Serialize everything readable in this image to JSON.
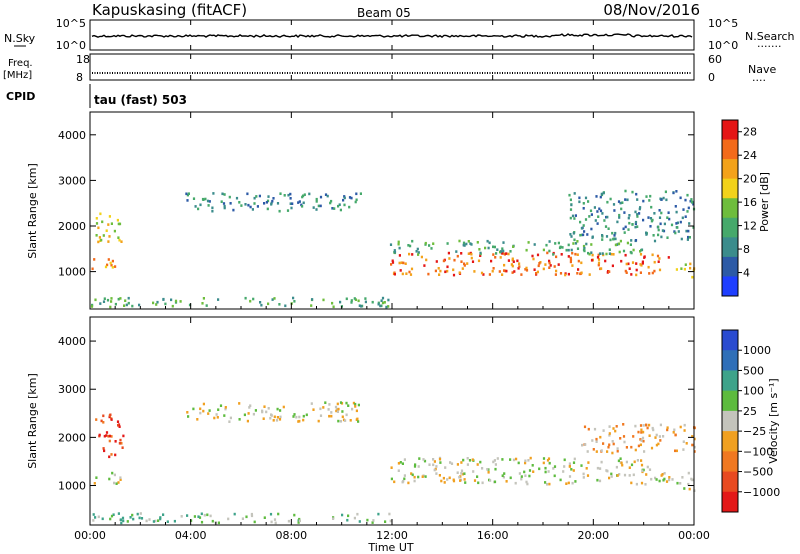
{
  "header": {
    "station": "Kapuskasing (fitACF)",
    "beam": "Beam 05",
    "date": "08/Nov/2016"
  },
  "strip_top": {
    "left_label": "N.Sky",
    "right_label": "N.Search",
    "right_dots": "·······",
    "left_ticks": [
      "10^5",
      "10^0"
    ],
    "right_ticks": [
      "10^5",
      "10^0"
    ]
  },
  "strip_freq": {
    "left_label_1": "Freq.",
    "left_label_2": "[MHz]",
    "right_label": "Nave",
    "right_dots": "····",
    "left_ticks": [
      "18",
      "8"
    ],
    "right_ticks": [
      "60",
      "0"
    ]
  },
  "cpid": {
    "label": "CPID",
    "mode": "tau (fast) 503"
  },
  "colors": {
    "power": [
      "#1f3fff",
      "#2c5aa6",
      "#3b8c8c",
      "#46a96b",
      "#6ebd3c",
      "#f2d21a",
      "#f3a21a",
      "#f36a1a",
      "#e51616"
    ],
    "velocity": [
      "#2a4bd0",
      "#2f6fb8",
      "#3ea38a",
      "#5dbb3e",
      "#c4c4bc",
      "#f0a020",
      "#f07820",
      "#e84a20",
      "#e31818"
    ],
    "ground": "#c4c4bc"
  },
  "chart_data": [
    {
      "type": "heatmap",
      "title": "Power",
      "ylabel": "Slant Range [km]",
      "xlabel": "Time UT",
      "xlim": [
        0,
        24
      ],
      "ylim": [
        180,
        4500
      ],
      "x_ticks": [
        "00:00",
        "04:00",
        "08:00",
        "12:00",
        "16:00",
        "20:00",
        "00:00"
      ],
      "y_ticks": [
        1000,
        2000,
        3000,
        4000
      ],
      "colorbar": {
        "label": "Power [dB]",
        "ticks": [
          "4",
          "8",
          "12",
          "16",
          "20",
          "24",
          "28"
        ],
        "range": [
          0,
          30
        ]
      },
      "regions": [
        {
          "t0": 0.0,
          "t1": 1.2,
          "r0": 1050,
          "r1": 1300,
          "level": 6
        },
        {
          "t0": 0.2,
          "t1": 1.3,
          "r0": 1650,
          "r1": 2300,
          "level": 5
        },
        {
          "t0": 3.7,
          "t1": 10.8,
          "r0": 2350,
          "r1": 2750,
          "level": 2
        },
        {
          "t0": 11.9,
          "t1": 23.0,
          "r0": 950,
          "r1": 1450,
          "level": 7
        },
        {
          "t0": 11.9,
          "t1": 22.0,
          "r0": 1400,
          "r1": 1700,
          "level": 3
        },
        {
          "t0": 19.0,
          "t1": 24.0,
          "r0": 1700,
          "r1": 2800,
          "level": 2
        },
        {
          "t0": 23.2,
          "t1": 24.0,
          "r0": 850,
          "r1": 1200,
          "level": 5
        },
        {
          "t0": 0.0,
          "t1": 12.0,
          "r0": 250,
          "r1": 450,
          "level": 3
        }
      ]
    },
    {
      "type": "heatmap",
      "title": "Velocity",
      "ylabel": "Slant Range [km]",
      "xlabel": "Time UT",
      "xlim": [
        0,
        24
      ],
      "ylim": [
        180,
        4500
      ],
      "x_ticks": [
        "00:00",
        "04:00",
        "08:00",
        "12:00",
        "16:00",
        "20:00",
        "00:00"
      ],
      "y_ticks": [
        1000,
        2000,
        3000,
        4000
      ],
      "colorbar": {
        "label": "Velocity [m s⁻¹]",
        "ticks": [
          "1000",
          "500",
          "100",
          "25",
          "−25",
          "−100",
          "−500",
          "−1000"
        ]
      },
      "regions": [
        {
          "t0": 0.2,
          "t1": 1.3,
          "r0": 1600,
          "r1": 2500,
          "level": 7
        },
        {
          "t0": 0.0,
          "t1": 1.2,
          "r0": 1050,
          "r1": 1300,
          "level": 4
        },
        {
          "t0": 3.7,
          "t1": 10.8,
          "r0": 2350,
          "r1": 2750,
          "level": 4
        },
        {
          "t0": 11.9,
          "t1": 22.5,
          "r0": 1050,
          "r1": 1600,
          "level": 4
        },
        {
          "t0": 19.5,
          "t1": 24.0,
          "r0": 1700,
          "r1": 2300,
          "level": 5
        },
        {
          "t0": 22.5,
          "t1": 24.0,
          "r0": 900,
          "r1": 1300,
          "level": 4
        },
        {
          "t0": 0.0,
          "t1": 12.0,
          "r0": 250,
          "r1": 450,
          "level": 3
        }
      ]
    }
  ]
}
